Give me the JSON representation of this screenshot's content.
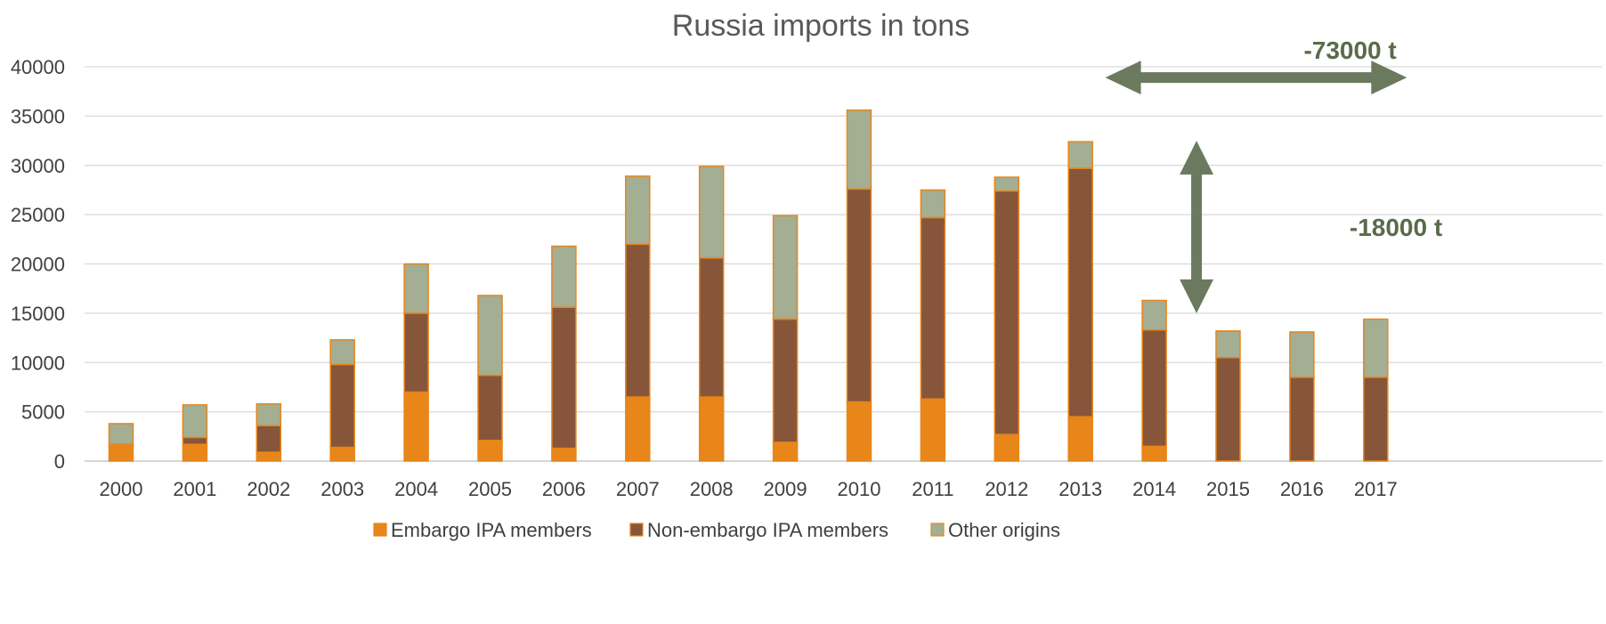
{
  "chart_data": {
    "type": "bar",
    "stacked": true,
    "title": "Russia imports in tons",
    "xlabel": "",
    "ylabel": "",
    "ylim": [
      0,
      40000
    ],
    "yticks": [
      0,
      5000,
      10000,
      15000,
      20000,
      25000,
      30000,
      35000,
      40000
    ],
    "grid": true,
    "legend_position": "bottom",
    "categories": [
      "2000",
      "2001",
      "2002",
      "2003",
      "2004",
      "2005",
      "2006",
      "2007",
      "2008",
      "2009",
      "2010",
      "2011",
      "2012",
      "2013",
      "2014",
      "2015",
      "2016",
      "2017"
    ],
    "series": [
      {
        "name": "Embargo IPA members",
        "color": "#e8861a",
        "values": [
          1700,
          1700,
          900,
          1400,
          7000,
          2100,
          1300,
          6500,
          6500,
          1900,
          6000,
          6300,
          2700,
          4500,
          1500,
          0,
          0,
          0
        ]
      },
      {
        "name": "Non-embargo IPA members",
        "color": "#87553a",
        "values": [
          0,
          700,
          2700,
          8400,
          8000,
          6600,
          14300,
          15500,
          14100,
          12500,
          21600,
          18400,
          24700,
          25200,
          11800,
          10500,
          8500,
          8500
        ]
      },
      {
        "name": "Other origins",
        "color": "#a3ae92",
        "values": [
          2100,
          3300,
          2200,
          2500,
          5000,
          8100,
          6200,
          6900,
          9300,
          10500,
          8000,
          2800,
          1400,
          2700,
          3000,
          2700,
          4600,
          5900
        ]
      }
    ],
    "bar_edge_color": "#e8861a",
    "annotations": [
      {
        "text": "-73000 t",
        "type": "double-arrow-horizontal",
        "color": "#6b7a5e",
        "y_value": 38900,
        "x_from": "2014",
        "x_to": "2017"
      },
      {
        "text": "-18000 t",
        "type": "double-arrow-vertical",
        "color": "#6b7a5e",
        "x_between": [
          "2014",
          "2015"
        ],
        "y_from": 15000,
        "y_to": 32500
      }
    ]
  }
}
